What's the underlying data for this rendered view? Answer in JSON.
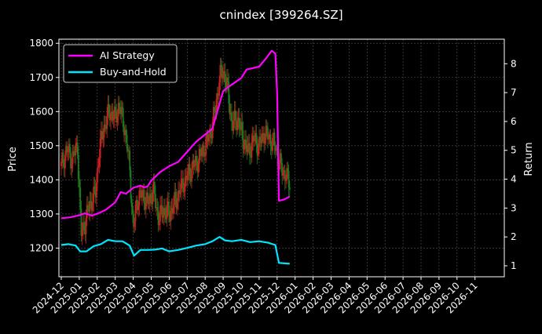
{
  "chart_data": {
    "type": "line",
    "title": "cnindex [399264.SZ]",
    "xlabel": "",
    "ylabel_left": "Price",
    "ylabel_right": "Return",
    "x_ticks": [
      "2024-12",
      "2025-01",
      "2025-02",
      "2025-03",
      "2025-04",
      "2025-05",
      "2025-06",
      "2025-07",
      "2025-08",
      "2025-09",
      "2025-10",
      "2025-11",
      "2025-12",
      "2026-01",
      "2026-02",
      "2026-03",
      "2026-04",
      "2026-05",
      "2026-06",
      "2026-07",
      "2026-08",
      "2026-09",
      "2026-10",
      "2026-11"
    ],
    "y_left_ticks": [
      1200,
      1300,
      1400,
      1500,
      1600,
      1700,
      1800
    ],
    "y_left_lim": [
      1116,
      1812
    ],
    "y_right_ticks": [
      1,
      2,
      3,
      4,
      5,
      6,
      7,
      8
    ],
    "y_right_lim": [
      0.62,
      8.85
    ],
    "legend_placement": "top-left",
    "grid": true,
    "colors": {
      "background": "#000000",
      "candle_up": "#cc1f1f",
      "candle_down": "#1f7a1f",
      "ai_strategy": "#ff00ff",
      "buy_and_hold": "#00e5ff",
      "grid": "#555555"
    },
    "series": [
      {
        "name": "AI Strategy",
        "axis": "right",
        "points": [
          [
            0,
            2.65
          ],
          [
            0.5,
            2.68
          ],
          [
            1,
            2.75
          ],
          [
            1.3,
            2.82
          ],
          [
            1.7,
            2.74
          ],
          [
            2,
            2.8
          ],
          [
            2.5,
            2.95
          ],
          [
            3,
            3.2
          ],
          [
            3.3,
            3.55
          ],
          [
            3.6,
            3.5
          ],
          [
            4,
            3.7
          ],
          [
            4.4,
            3.78
          ],
          [
            4.6,
            3.72
          ],
          [
            4.8,
            3.75
          ],
          [
            5,
            3.95
          ],
          [
            5.5,
            4.25
          ],
          [
            6,
            4.45
          ],
          [
            6.5,
            4.6
          ],
          [
            7,
            4.95
          ],
          [
            7.5,
            5.3
          ],
          [
            8,
            5.55
          ],
          [
            8.4,
            5.75
          ],
          [
            8.7,
            6.4
          ],
          [
            9,
            7.05
          ],
          [
            9.3,
            7.2
          ],
          [
            10,
            7.5
          ],
          [
            10.3,
            7.8
          ],
          [
            11,
            7.9
          ],
          [
            11.4,
            8.2
          ],
          [
            11.7,
            8.45
          ],
          [
            11.9,
            8.35
          ],
          [
            12,
            7.0
          ],
          [
            12.1,
            3.25
          ],
          [
            12.4,
            3.3
          ],
          [
            12.7,
            3.4
          ]
        ]
      },
      {
        "name": "Buy-and-Hold",
        "axis": "right",
        "points": [
          [
            0,
            1.72
          ],
          [
            0.4,
            1.75
          ],
          [
            0.8,
            1.7
          ],
          [
            1.05,
            1.5
          ],
          [
            1.4,
            1.5
          ],
          [
            1.8,
            1.68
          ],
          [
            2.2,
            1.75
          ],
          [
            2.6,
            1.9
          ],
          [
            3,
            1.85
          ],
          [
            3.4,
            1.85
          ],
          [
            3.8,
            1.7
          ],
          [
            4.05,
            1.35
          ],
          [
            4.4,
            1.55
          ],
          [
            4.8,
            1.55
          ],
          [
            5.2,
            1.56
          ],
          [
            5.6,
            1.6
          ],
          [
            6,
            1.5
          ],
          [
            6.5,
            1.55
          ],
          [
            7,
            1.62
          ],
          [
            7.5,
            1.7
          ],
          [
            8,
            1.75
          ],
          [
            8.4,
            1.85
          ],
          [
            8.8,
            2.0
          ],
          [
            9.1,
            1.88
          ],
          [
            9.5,
            1.85
          ],
          [
            10,
            1.9
          ],
          [
            10.5,
            1.82
          ],
          [
            11,
            1.85
          ],
          [
            11.5,
            1.8
          ],
          [
            11.9,
            1.72
          ],
          [
            12.1,
            1.1
          ],
          [
            12.7,
            1.07
          ]
        ]
      },
      {
        "name": "",
        "type": "candlestick",
        "axis": "left",
        "close": [
          [
            0,
            1440
          ],
          [
            0.3,
            1490
          ],
          [
            0.6,
            1460
          ],
          [
            0.9,
            1500
          ],
          [
            1.1,
            1240
          ],
          [
            1.3,
            1270
          ],
          [
            1.6,
            1330
          ],
          [
            1.9,
            1360
          ],
          [
            2.1,
            1480
          ],
          [
            2.4,
            1560
          ],
          [
            2.7,
            1600
          ],
          [
            3,
            1580
          ],
          [
            3.2,
            1620
          ],
          [
            3.5,
            1560
          ],
          [
            3.8,
            1440
          ],
          [
            4,
            1250
          ],
          [
            4.2,
            1340
          ],
          [
            4.5,
            1360
          ],
          [
            4.8,
            1330
          ],
          [
            5.1,
            1370
          ],
          [
            5.4,
            1290
          ],
          [
            5.7,
            1310
          ],
          [
            6,
            1300
          ],
          [
            6.3,
            1330
          ],
          [
            6.6,
            1370
          ],
          [
            6.9,
            1400
          ],
          [
            7.2,
            1430
          ],
          [
            7.5,
            1450
          ],
          [
            7.8,
            1480
          ],
          [
            8.1,
            1510
          ],
          [
            8.4,
            1560
          ],
          [
            8.6,
            1620
          ],
          [
            8.8,
            1700
          ],
          [
            9,
            1720
          ],
          [
            9.2,
            1680
          ],
          [
            9.5,
            1560
          ],
          [
            9.8,
            1580
          ],
          [
            10.1,
            1520
          ],
          [
            10.4,
            1480
          ],
          [
            10.7,
            1520
          ],
          [
            11,
            1500
          ],
          [
            11.3,
            1540
          ],
          [
            11.6,
            1520
          ],
          [
            11.9,
            1500
          ],
          [
            12.1,
            1450
          ],
          [
            12.4,
            1420
          ],
          [
            12.7,
            1390
          ]
        ]
      }
    ]
  }
}
